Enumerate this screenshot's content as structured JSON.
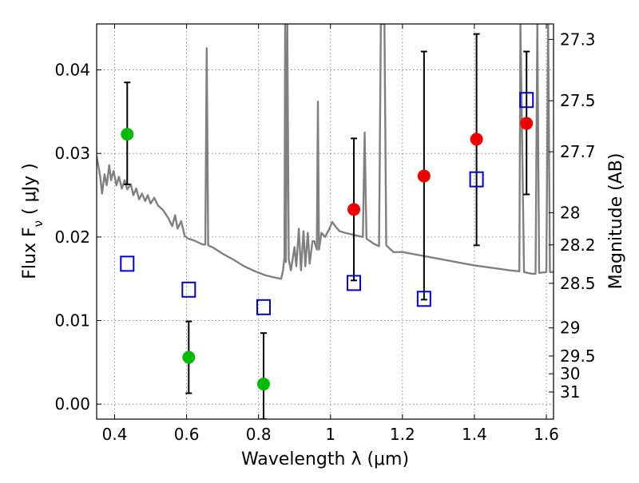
{
  "chart_data": {
    "type": "scatter",
    "title": "",
    "xlabel": "Wavelength  λ (μm)",
    "ylabel_left": "Flux  F_ν  ( μJy )",
    "ylabel_right": "Magnitude (AB)",
    "xlim": [
      0.35,
      1.62
    ],
    "ylim": [
      -0.0018,
      0.0455
    ],
    "grid": true,
    "x_ticks": [
      0.4,
      0.6,
      0.8,
      1.0,
      1.2,
      1.4,
      1.6
    ],
    "x_tick_labels": [
      "0.4",
      "0.6",
      "0.8",
      "1",
      "1.2",
      "1.4",
      "1.6"
    ],
    "y_ticks": [
      0.0,
      0.01,
      0.02,
      0.03,
      0.04
    ],
    "y_tick_labels": [
      "0.00",
      "0.01",
      "0.02",
      "0.03",
      "0.04"
    ],
    "right_ticks": [
      {
        "label": "27.3",
        "mag": 27.3
      },
      {
        "label": "27.5",
        "mag": 27.5
      },
      {
        "label": "27.7",
        "mag": 27.7
      },
      {
        "label": "28",
        "mag": 28.0
      },
      {
        "label": "28.2",
        "mag": 28.2
      },
      {
        "label": "28.5",
        "mag": 28.5
      },
      {
        "label": "29",
        "mag": 29.0
      },
      {
        "label": "29.5",
        "mag": 29.5
      },
      {
        "label": "30",
        "mag": 30.0
      },
      {
        "label": "31",
        "mag": 31.0
      }
    ],
    "series": [
      {
        "color": "#00bb00",
        "marker": "circle",
        "points": [
          {
            "x": 0.435,
            "y": 0.0323,
            "yerr_low": 0.0263,
            "yerr_high": 0.0385
          },
          {
            "x": 0.606,
            "y": 0.0056,
            "yerr_low": 0.0013,
            "yerr_high": 0.0099
          },
          {
            "x": 0.814,
            "y": 0.0024,
            "yerr_low": -0.0018,
            "yerr_high": 0.0085
          }
        ]
      },
      {
        "color": "#ee0000",
        "marker": "circle",
        "points": [
          {
            "x": 1.065,
            "y": 0.0233,
            "yerr_low": 0.0148,
            "yerr_high": 0.0318
          },
          {
            "x": 1.26,
            "y": 0.0273,
            "yerr_low": 0.0125,
            "yerr_high": 0.0422
          },
          {
            "x": 1.406,
            "y": 0.0317,
            "yerr_low": 0.019,
            "yerr_high": 0.0443
          },
          {
            "x": 1.545,
            "y": 0.0336,
            "yerr_low": 0.0251,
            "yerr_high": 0.0422
          }
        ]
      },
      {
        "color": "#0000cc",
        "marker": "square",
        "points": [
          {
            "x": 0.435,
            "y": 0.0168
          },
          {
            "x": 0.606,
            "y": 0.0137
          },
          {
            "x": 0.814,
            "y": 0.0116
          },
          {
            "x": 1.065,
            "y": 0.0145
          },
          {
            "x": 1.26,
            "y": 0.0126
          },
          {
            "x": 1.406,
            "y": 0.0269
          },
          {
            "x": 1.545,
            "y": 0.0364
          }
        ]
      },
      {
        "color": "#808080",
        "marker": "line",
        "points": [
          [
            0.35,
            0.0297
          ],
          [
            0.36,
            0.0272
          ],
          [
            0.365,
            0.0252
          ],
          [
            0.372,
            0.0275
          ],
          [
            0.378,
            0.0262
          ],
          [
            0.385,
            0.0286
          ],
          [
            0.39,
            0.0268
          ],
          [
            0.397,
            0.0279
          ],
          [
            0.405,
            0.0262
          ],
          [
            0.412,
            0.0272
          ],
          [
            0.42,
            0.0258
          ],
          [
            0.428,
            0.0268
          ],
          [
            0.435,
            0.0257
          ],
          [
            0.445,
            0.0263
          ],
          [
            0.452,
            0.025
          ],
          [
            0.46,
            0.0258
          ],
          [
            0.468,
            0.0245
          ],
          [
            0.476,
            0.0252
          ],
          [
            0.485,
            0.0243
          ],
          [
            0.492,
            0.025
          ],
          [
            0.5,
            0.024
          ],
          [
            0.51,
            0.0247
          ],
          [
            0.52,
            0.0238
          ],
          [
            0.535,
            0.0232
          ],
          [
            0.55,
            0.0222
          ],
          [
            0.56,
            0.0213
          ],
          [
            0.568,
            0.0226
          ],
          [
            0.575,
            0.021
          ],
          [
            0.585,
            0.0219
          ],
          [
            0.595,
            0.0201
          ],
          [
            0.605,
            0.0198
          ],
          [
            0.62,
            0.0196
          ],
          [
            0.635,
            0.0193
          ],
          [
            0.645,
            0.0191
          ],
          [
            0.652,
            0.0191
          ],
          [
            0.656,
            0.0426
          ],
          [
            0.66,
            0.019
          ],
          [
            0.675,
            0.0187
          ],
          [
            0.7,
            0.018
          ],
          [
            0.73,
            0.0173
          ],
          [
            0.76,
            0.0165
          ],
          [
            0.79,
            0.0159
          ],
          [
            0.82,
            0.0154
          ],
          [
            0.85,
            0.0151
          ],
          [
            0.863,
            0.015
          ],
          [
            0.868,
            0.016
          ],
          [
            0.872,
            0.0175
          ],
          [
            0.874,
            0.0455
          ],
          [
            0.876,
            0.017
          ],
          [
            0.88,
            0.0455
          ],
          [
            0.884,
            0.0173
          ],
          [
            0.89,
            0.016
          ],
          [
            0.9,
            0.0188
          ],
          [
            0.905,
            0.0165
          ],
          [
            0.912,
            0.021
          ],
          [
            0.918,
            0.016
          ],
          [
            0.925,
            0.0207
          ],
          [
            0.93,
            0.0165
          ],
          [
            0.937,
            0.0205
          ],
          [
            0.942,
            0.0168
          ],
          [
            0.95,
            0.0195
          ],
          [
            0.955,
            0.0195
          ],
          [
            0.962,
            0.0185
          ],
          [
            0.965,
            0.0362
          ],
          [
            0.968,
            0.0185
          ],
          [
            0.975,
            0.0205
          ],
          [
            0.985,
            0.02
          ],
          [
            0.995,
            0.0208
          ],
          [
            1.005,
            0.0218
          ],
          [
            1.015,
            0.0212
          ],
          [
            1.025,
            0.0207
          ],
          [
            1.04,
            0.0205
          ],
          [
            1.06,
            0.0203
          ],
          [
            1.08,
            0.0201
          ],
          [
            1.09,
            0.02
          ],
          [
            1.095,
            0.0325
          ],
          [
            1.1,
            0.0198
          ],
          [
            1.12,
            0.0192
          ],
          [
            1.135,
            0.0189
          ],
          [
            1.14,
            0.0455
          ],
          [
            1.15,
            0.0455
          ],
          [
            1.155,
            0.019
          ],
          [
            1.175,
            0.0182
          ],
          [
            1.2,
            0.0182
          ],
          [
            1.25,
            0.0178
          ],
          [
            1.3,
            0.0174
          ],
          [
            1.35,
            0.017
          ],
          [
            1.4,
            0.0166
          ],
          [
            1.45,
            0.0163
          ],
          [
            1.5,
            0.016
          ],
          [
            1.525,
            0.0159
          ],
          [
            1.528,
            0.0455
          ],
          [
            1.538,
            0.0158
          ],
          [
            1.56,
            0.0156
          ],
          [
            1.57,
            0.0156
          ],
          [
            1.575,
            0.0455
          ],
          [
            1.58,
            0.0157
          ],
          [
            1.6,
            0.0158
          ],
          [
            1.605,
            0.0455
          ],
          [
            1.61,
            0.0158
          ],
          [
            1.62,
            0.0158
          ]
        ]
      }
    ]
  }
}
